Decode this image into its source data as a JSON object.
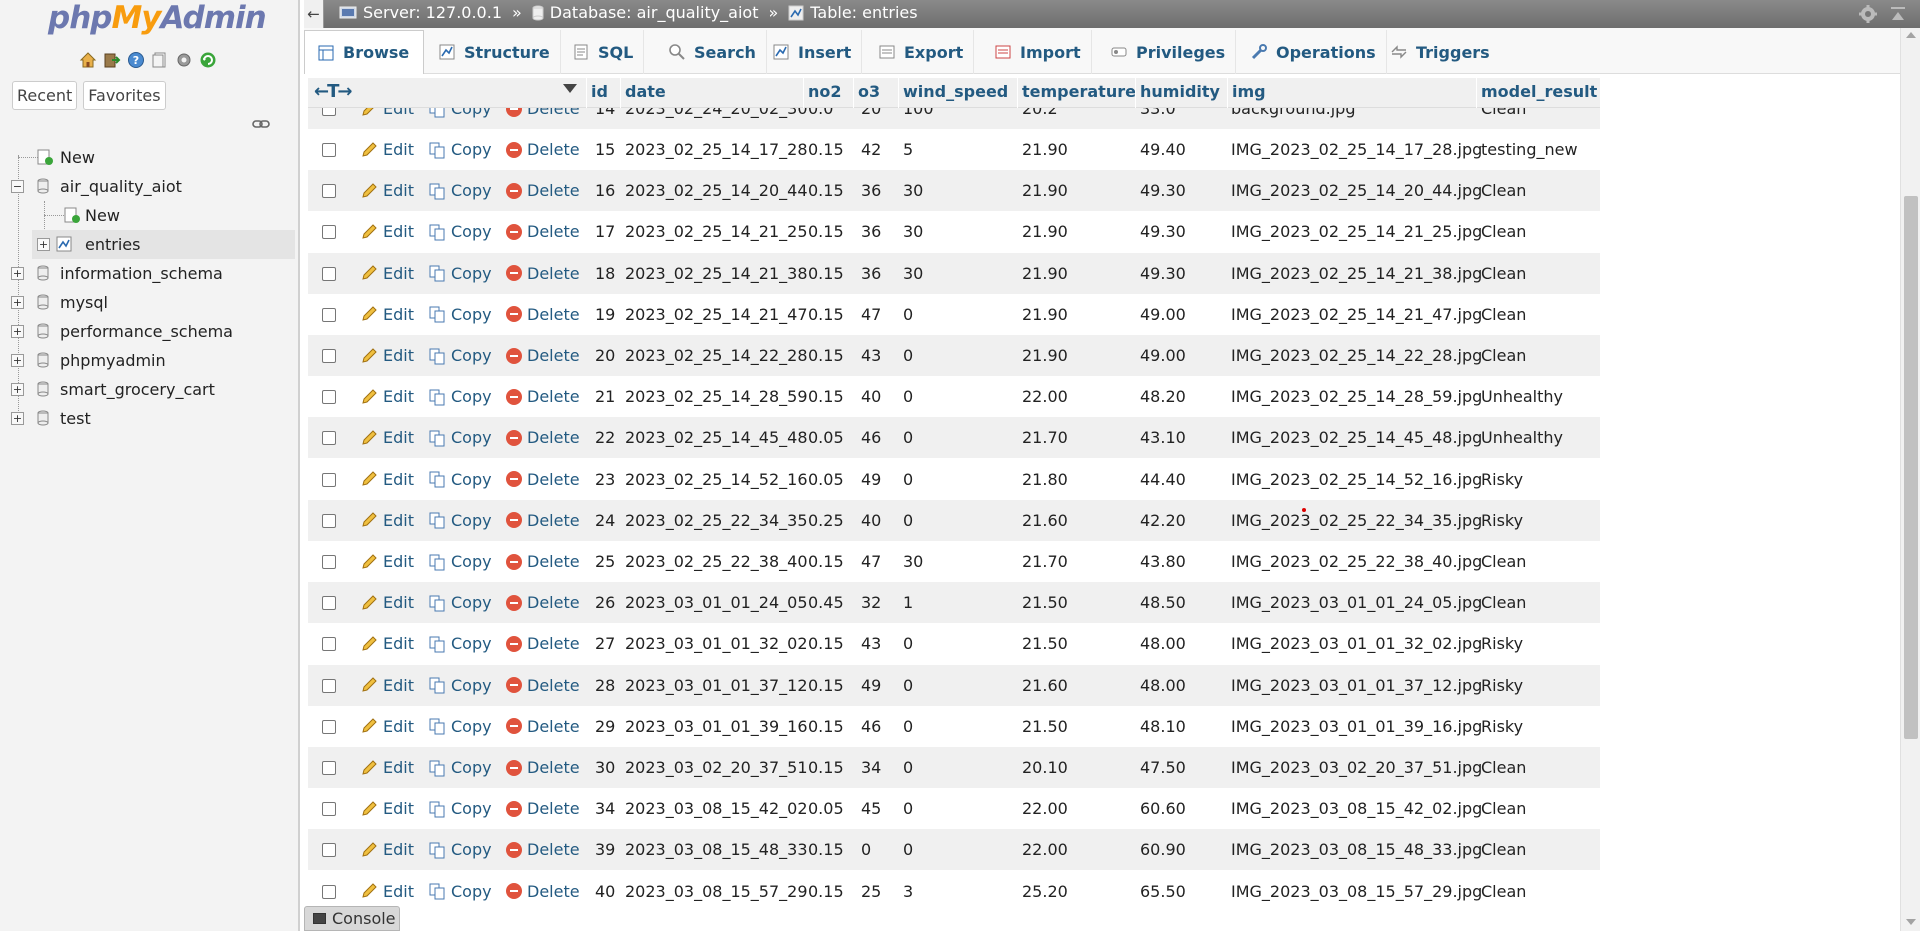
{
  "logo": {
    "part1": "php",
    "part2": "My",
    "part3": "Admin"
  },
  "nav": {
    "icons": [
      "home-icon",
      "exit-icon",
      "help-icon",
      "docs-icon",
      "settings-icon",
      "reload-icon"
    ],
    "recent_label": "Recent",
    "favorites_label": "Favorites",
    "tree": [
      {
        "label": "New",
        "level": 0,
        "type": "new"
      },
      {
        "label": "air_quality_aiot",
        "level": 0,
        "type": "db",
        "expanded": true
      },
      {
        "label": "New",
        "level": 1,
        "type": "new"
      },
      {
        "label": "entries",
        "level": 1,
        "type": "table",
        "selected": true
      },
      {
        "label": "information_schema",
        "level": 0,
        "type": "db"
      },
      {
        "label": "mysql",
        "level": 0,
        "type": "db"
      },
      {
        "label": "performance_schema",
        "level": 0,
        "type": "db"
      },
      {
        "label": "phpmyadmin",
        "level": 0,
        "type": "db"
      },
      {
        "label": "smart_grocery_cart",
        "level": 0,
        "type": "db"
      },
      {
        "label": "test",
        "level": 0,
        "type": "db"
      }
    ]
  },
  "breadcrumb": {
    "server": "Server: 127.0.0.1",
    "database": "Database: air_quality_aiot",
    "table": "Table: entries",
    "sep": "»"
  },
  "tabs": [
    {
      "label": "Browse",
      "icon": "browse-icon",
      "active": true
    },
    {
      "label": "Structure",
      "icon": "structure-icon"
    },
    {
      "label": "SQL",
      "icon": "sql-icon"
    },
    {
      "label": "Search",
      "icon": "search-icon"
    },
    {
      "label": "Insert",
      "icon": "insert-icon"
    },
    {
      "label": "Export",
      "icon": "export-icon"
    },
    {
      "label": "Import",
      "icon": "import-icon"
    },
    {
      "label": "Privileges",
      "icon": "privileges-icon"
    },
    {
      "label": "Operations",
      "icon": "operations-icon"
    },
    {
      "label": "Triggers",
      "icon": "triggers-icon"
    }
  ],
  "table": {
    "resize_label": "←T→",
    "columns": [
      "id",
      "date",
      "no2",
      "o3",
      "wind_speed",
      "temperature",
      "humidity",
      "img",
      "model_result"
    ],
    "actions": {
      "edit": "Edit",
      "copy": "Copy",
      "delete": "Delete"
    },
    "partial_row": {
      "id": "14",
      "date": "2023_02_24_20_02_30",
      "no2": "0.0",
      "o3": "20",
      "wind_speed": "100",
      "temperature": "20.2",
      "humidity": "33.0",
      "img": "background.jpg",
      "model_result": "Clean"
    },
    "rows": [
      {
        "id": "15",
        "date": "2023_02_25_14_17_28",
        "no2": "0.15",
        "o3": "42",
        "wind_speed": "5",
        "temperature": "21.90",
        "humidity": "49.40",
        "img": "IMG_2023_02_25_14_17_28.jpg",
        "model_result": "testing_new"
      },
      {
        "id": "16",
        "date": "2023_02_25_14_20_44",
        "no2": "0.15",
        "o3": "36",
        "wind_speed": "30",
        "temperature": "21.90",
        "humidity": "49.30",
        "img": "IMG_2023_02_25_14_20_44.jpg",
        "model_result": "Clean"
      },
      {
        "id": "17",
        "date": "2023_02_25_14_21_25",
        "no2": "0.15",
        "o3": "36",
        "wind_speed": "30",
        "temperature": "21.90",
        "humidity": "49.30",
        "img": "IMG_2023_02_25_14_21_25.jpg",
        "model_result": "Clean"
      },
      {
        "id": "18",
        "date": "2023_02_25_14_21_38",
        "no2": "0.15",
        "o3": "36",
        "wind_speed": "30",
        "temperature": "21.90",
        "humidity": "49.30",
        "img": "IMG_2023_02_25_14_21_38.jpg",
        "model_result": "Clean"
      },
      {
        "id": "19",
        "date": "2023_02_25_14_21_47",
        "no2": "0.15",
        "o3": "47",
        "wind_speed": "0",
        "temperature": "21.90",
        "humidity": "49.00",
        "img": "IMG_2023_02_25_14_21_47.jpg",
        "model_result": "Clean"
      },
      {
        "id": "20",
        "date": "2023_02_25_14_22_28",
        "no2": "0.15",
        "o3": "43",
        "wind_speed": "0",
        "temperature": "21.90",
        "humidity": "49.00",
        "img": "IMG_2023_02_25_14_22_28.jpg",
        "model_result": "Clean"
      },
      {
        "id": "21",
        "date": "2023_02_25_14_28_59",
        "no2": "0.15",
        "o3": "40",
        "wind_speed": "0",
        "temperature": "22.00",
        "humidity": "48.20",
        "img": "IMG_2023_02_25_14_28_59.jpg",
        "model_result": "Unhealthy"
      },
      {
        "id": "22",
        "date": "2023_02_25_14_45_48",
        "no2": "0.05",
        "o3": "46",
        "wind_speed": "0",
        "temperature": "21.70",
        "humidity": "43.10",
        "img": "IMG_2023_02_25_14_45_48.jpg",
        "model_result": "Unhealthy"
      },
      {
        "id": "23",
        "date": "2023_02_25_14_52_16",
        "no2": "0.05",
        "o3": "49",
        "wind_speed": "0",
        "temperature": "21.80",
        "humidity": "44.40",
        "img": "IMG_2023_02_25_14_52_16.jpg",
        "model_result": "Risky"
      },
      {
        "id": "24",
        "date": "2023_02_25_22_34_35",
        "no2": "0.25",
        "o3": "40",
        "wind_speed": "0",
        "temperature": "21.60",
        "humidity": "42.20",
        "img": "IMG_2023_02_25_22_34_35.jpg",
        "model_result": "Risky"
      },
      {
        "id": "25",
        "date": "2023_02_25_22_38_40",
        "no2": "0.15",
        "o3": "47",
        "wind_speed": "30",
        "temperature": "21.70",
        "humidity": "43.80",
        "img": "IMG_2023_02_25_22_38_40.jpg",
        "model_result": "Clean"
      },
      {
        "id": "26",
        "date": "2023_03_01_01_24_05",
        "no2": "0.45",
        "o3": "32",
        "wind_speed": "1",
        "temperature": "21.50",
        "humidity": "48.50",
        "img": "IMG_2023_03_01_01_24_05.jpg",
        "model_result": "Clean"
      },
      {
        "id": "27",
        "date": "2023_03_01_01_32_02",
        "no2": "0.15",
        "o3": "43",
        "wind_speed": "0",
        "temperature": "21.50",
        "humidity": "48.00",
        "img": "IMG_2023_03_01_01_32_02.jpg",
        "model_result": "Risky"
      },
      {
        "id": "28",
        "date": "2023_03_01_01_37_12",
        "no2": "0.15",
        "o3": "49",
        "wind_speed": "0",
        "temperature": "21.60",
        "humidity": "48.00",
        "img": "IMG_2023_03_01_01_37_12.jpg",
        "model_result": "Risky"
      },
      {
        "id": "29",
        "date": "2023_03_01_01_39_16",
        "no2": "0.15",
        "o3": "46",
        "wind_speed": "0",
        "temperature": "21.50",
        "humidity": "48.10",
        "img": "IMG_2023_03_01_01_39_16.jpg",
        "model_result": "Risky"
      },
      {
        "id": "30",
        "date": "2023_03_02_20_37_51",
        "no2": "0.15",
        "o3": "34",
        "wind_speed": "0",
        "temperature": "20.10",
        "humidity": "47.50",
        "img": "IMG_2023_03_02_20_37_51.jpg",
        "model_result": "Clean"
      },
      {
        "id": "34",
        "date": "2023_03_08_15_42_02",
        "no2": "0.05",
        "o3": "45",
        "wind_speed": "0",
        "temperature": "22.00",
        "humidity": "60.60",
        "img": "IMG_2023_03_08_15_42_02.jpg",
        "model_result": "Clean"
      },
      {
        "id": "39",
        "date": "2023_03_08_15_48_33",
        "no2": "0.15",
        "o3": "0",
        "wind_speed": "0",
        "temperature": "22.00",
        "humidity": "60.90",
        "img": "IMG_2023_03_08_15_48_33.jpg",
        "model_result": "Clean"
      },
      {
        "id": "40",
        "date": "2023_03_08_15_57_29",
        "no2": "0.15",
        "o3": "25",
        "wind_speed": "3",
        "temperature": "25.20",
        "humidity": "65.50",
        "img": "IMG_2023_03_08_15_57_29.jpg",
        "model_result": "Clean"
      }
    ]
  },
  "console": {
    "label": "Console"
  },
  "colors": {
    "link": "#235a81",
    "row_alt": "#f0f0f0",
    "topbar": "#7a7a7a",
    "delete": "#e0533d"
  }
}
